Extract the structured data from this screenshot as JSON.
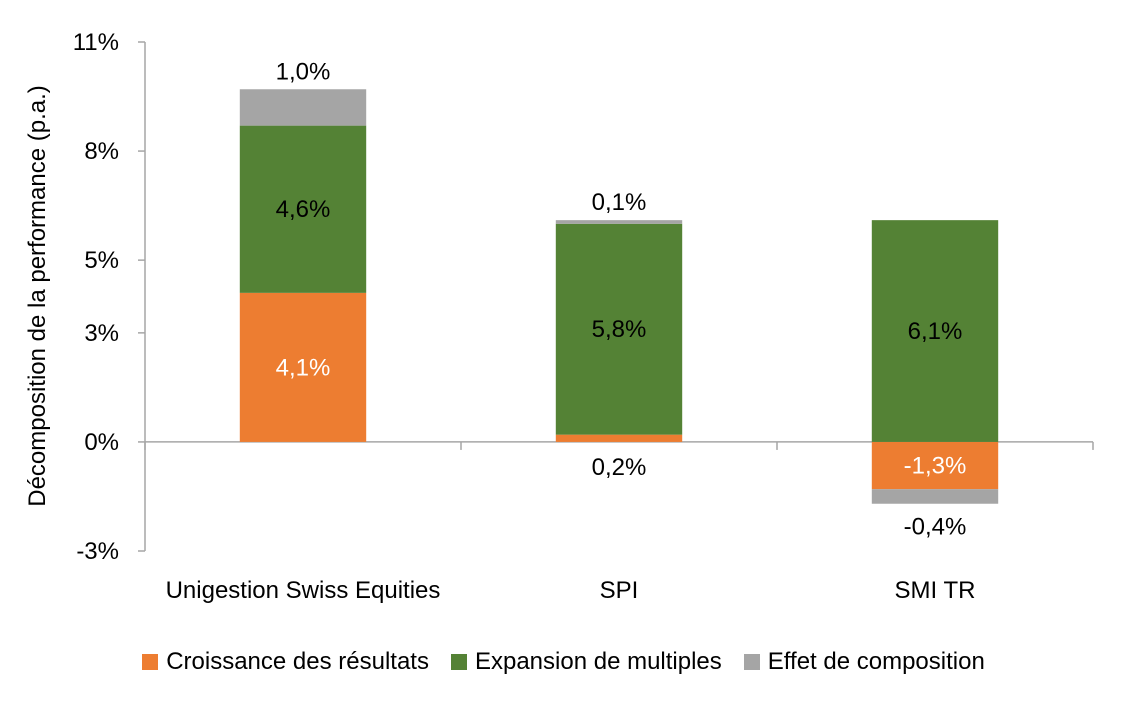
{
  "chart_data": {
    "type": "bar",
    "stacked": true,
    "categories": [
      "Unigestion Swiss Equities",
      "SPI",
      "SMI TR"
    ],
    "series": [
      {
        "name": "Croissance des résultats",
        "color": "#ED7D31",
        "values": [
          4.1,
          0.2,
          -1.3
        ],
        "labels": [
          "4,1%",
          "0,2%",
          "-1,3%"
        ],
        "label_color": [
          "#ffffff",
          "#000000",
          "#ffffff"
        ]
      },
      {
        "name": "Expansion de multiples",
        "color": "#548235",
        "values": [
          4.6,
          5.8,
          6.1
        ],
        "labels": [
          "4,6%",
          "5,8%",
          "6,1%"
        ],
        "label_color": [
          "#000000",
          "#000000",
          "#000000"
        ]
      },
      {
        "name": "Effet de composition",
        "color": "#A5A5A5",
        "values": [
          1.0,
          0.1,
          -0.4
        ],
        "labels": [
          "1,0%",
          "0,1%",
          "-0,4%"
        ],
        "label_color": [
          "#000000",
          "#000000",
          "#000000"
        ]
      }
    ],
    "ylabel": "Décomposition de la performance  (p.a.)",
    "xlabel": "",
    "title": "",
    "ylim": [
      -3,
      11
    ],
    "yticks": [
      -3,
      0,
      3,
      5,
      8,
      11
    ],
    "ytick_labels": [
      "-3%",
      "0%",
      "3%",
      "5%",
      "8%",
      "11%"
    ],
    "grid": false,
    "legend_position": "bottom"
  }
}
